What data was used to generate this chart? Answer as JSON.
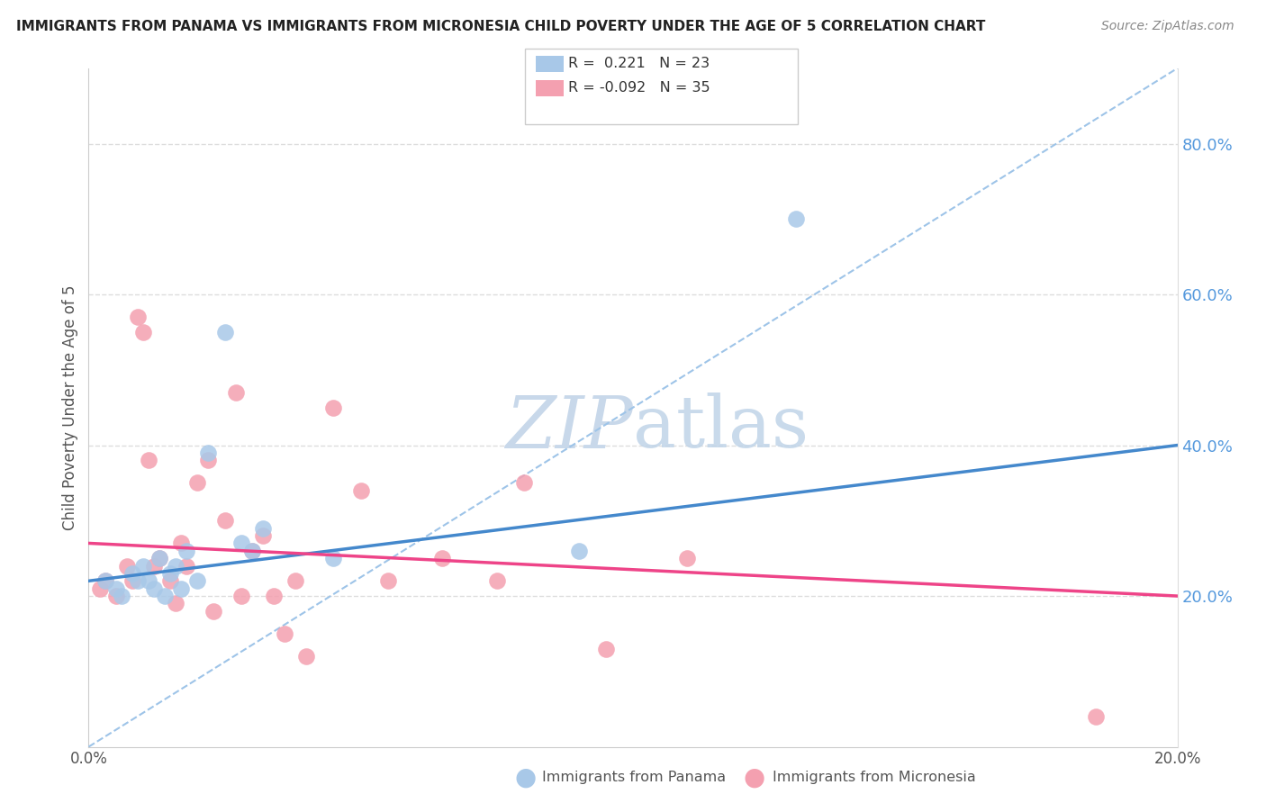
{
  "title": "IMMIGRANTS FROM PANAMA VS IMMIGRANTS FROM MICRONESIA CHILD POVERTY UNDER THE AGE OF 5 CORRELATION CHART",
  "source": "Source: ZipAtlas.com",
  "ylabel": "Child Poverty Under the Age of 5",
  "legend_panama": "Immigrants from Panama",
  "legend_micronesia": "Immigrants from Micronesia",
  "r_panama": 0.221,
  "n_panama": 23,
  "r_micronesia": -0.092,
  "n_micronesia": 35,
  "xlim": [
    0.0,
    20.0
  ],
  "ylim": [
    0.0,
    90.0
  ],
  "yticks": [
    0.0,
    20.0,
    40.0,
    60.0,
    80.0
  ],
  "ytick_labels": [
    "",
    "20.0%",
    "40.0%",
    "60.0%",
    "80.0%"
  ],
  "xticks": [
    0.0,
    5.0,
    10.0,
    15.0,
    20.0
  ],
  "xtick_labels": [
    "0.0%",
    "",
    "",
    "",
    "20.0%"
  ],
  "color_panama": "#a8c8e8",
  "color_micronesia": "#f4a0b0",
  "color_trendline_panama": "#4488cc",
  "color_trendline_micronesia": "#ee4488",
  "color_dashed_line": "#9ec4e8",
  "watermark_color": "#c8d8ea",
  "panama_x": [
    0.3,
    0.5,
    0.6,
    0.8,
    0.9,
    1.0,
    1.1,
    1.2,
    1.3,
    1.4,
    1.5,
    1.6,
    1.7,
    1.8,
    2.0,
    2.2,
    2.5,
    2.8,
    3.0,
    3.2,
    4.5,
    9.0,
    13.0
  ],
  "panama_y": [
    22,
    21,
    20,
    23,
    22,
    24,
    22,
    21,
    25,
    20,
    23,
    24,
    21,
    26,
    22,
    39,
    55,
    27,
    26,
    29,
    25,
    26,
    70
  ],
  "micronesia_x": [
    0.2,
    0.3,
    0.5,
    0.7,
    0.8,
    0.9,
    1.0,
    1.1,
    1.2,
    1.3,
    1.5,
    1.6,
    1.7,
    1.8,
    2.0,
    2.2,
    2.3,
    2.5,
    2.7,
    2.8,
    3.0,
    3.2,
    3.4,
    3.6,
    3.8,
    4.0,
    4.5,
    5.0,
    5.5,
    6.5,
    7.5,
    8.0,
    9.5,
    11.0,
    18.5
  ],
  "micronesia_y": [
    21,
    22,
    20,
    24,
    22,
    57,
    55,
    38,
    24,
    25,
    22,
    19,
    27,
    24,
    35,
    38,
    18,
    30,
    47,
    20,
    26,
    28,
    20,
    15,
    22,
    12,
    45,
    34,
    22,
    25,
    22,
    35,
    13,
    25,
    4
  ],
  "trendline_panama_y0": 22.0,
  "trendline_panama_y1": 40.0,
  "trendline_micronesia_y0": 27.0,
  "trendline_micronesia_y1": 20.0
}
